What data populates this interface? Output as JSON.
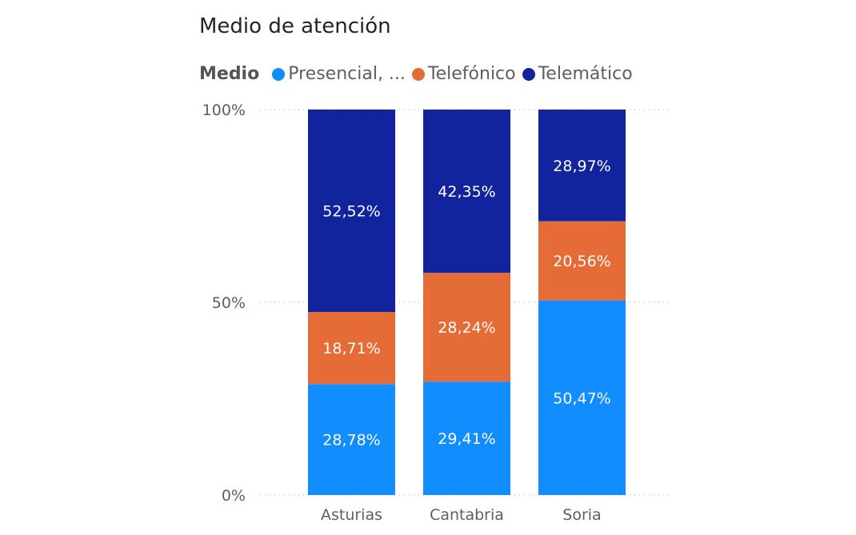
{
  "chart_data": {
    "type": "bar",
    "stacked": "100%",
    "title": "Medio de atención",
    "legend_title": "Medio",
    "legend_position": "top-left",
    "categories": [
      "Asturias",
      "Cantabria",
      "Soria"
    ],
    "series": [
      {
        "name": "Presencial, ...",
        "color": "#118DFF",
        "values": [
          28.78,
          29.41,
          50.47
        ],
        "labels": [
          "28,78%",
          "29,41%",
          "50,47%"
        ]
      },
      {
        "name": "Telefónico",
        "color": "#E66C37",
        "values": [
          18.71,
          28.24,
          20.56
        ],
        "labels": [
          "18,71%",
          "28,24%",
          "20,56%"
        ]
      },
      {
        "name": "Telemático",
        "color": "#12239E",
        "values": [
          52.52,
          42.35,
          28.97
        ],
        "labels": [
          "52,52%",
          "42,35%",
          "28,97%"
        ]
      }
    ],
    "ylim": [
      0,
      100
    ],
    "yticks": [
      "0%",
      "50%",
      "100%"
    ],
    "grid": true
  }
}
